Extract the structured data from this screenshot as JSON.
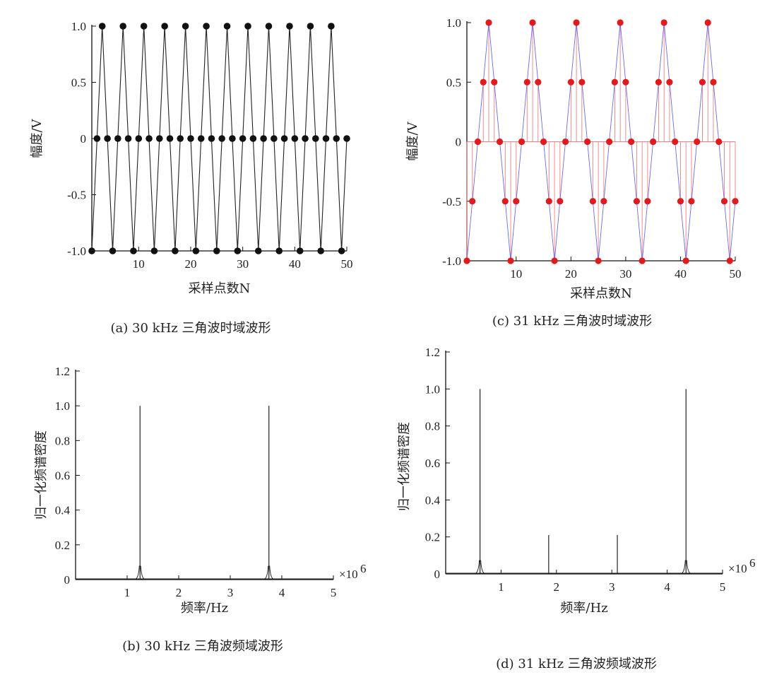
{
  "chart_data": [
    {
      "id": "a",
      "type": "line",
      "caption": "(a) 30 kHz 三角波时域波形",
      "xlabel": "采样点数N",
      "ylabel": "幅度/V",
      "xlim": [
        1,
        50
      ],
      "ylim": [
        -1.0,
        1.0
      ],
      "xticks": [
        10,
        20,
        30,
        40,
        50
      ],
      "yticks": [
        -1.0,
        -0.5,
        0,
        0.5,
        1.0
      ],
      "ytick_labels": [
        "-1.0",
        "-0.5",
        "0",
        "0.5",
        "1.0"
      ],
      "marker_color": "#111111",
      "line_color": "#222222",
      "series": [
        {
          "x": [
            1,
            2,
            3,
            4,
            5,
            6,
            7,
            8,
            9,
            10,
            11,
            12,
            13,
            14,
            15,
            16,
            17,
            18,
            19,
            20,
            21,
            22,
            23,
            24,
            25,
            26,
            27,
            28,
            29,
            30,
            31,
            32,
            33,
            34,
            35,
            36,
            37,
            38,
            39,
            40,
            41,
            42,
            43,
            44,
            45,
            46,
            47,
            48,
            49,
            50
          ],
          "y": [
            -1,
            0,
            1,
            0,
            -1,
            0,
            1,
            0,
            -1,
            0,
            1,
            0,
            -1,
            0,
            1,
            0,
            -1,
            0,
            1,
            0,
            -1,
            0,
            1,
            0,
            -1,
            0,
            1,
            0,
            -1,
            0,
            1,
            0,
            -1,
            0,
            1,
            0,
            -1,
            0,
            1,
            0,
            -1,
            0,
            1,
            0,
            -1,
            0,
            1,
            0,
            -1,
            0
          ]
        }
      ]
    },
    {
      "id": "c",
      "type": "line",
      "caption": "(c) 31 kHz 三角波时域波形",
      "xlabel": "采样点数N",
      "ylabel": "幅度/V",
      "xlim": [
        1,
        50
      ],
      "ylim": [
        -1.0,
        1.0
      ],
      "xticks": [
        10,
        20,
        30,
        40,
        50
      ],
      "yticks": [
        -1.0,
        -0.5,
        0,
        0.5,
        1.0
      ],
      "ytick_labels": [
        "-1.0",
        "-0.5",
        "0",
        "0.5",
        "1.0"
      ],
      "marker_color": "#e31a1c",
      "line_color": "#6a6af0",
      "stem_color": "#f08080",
      "series": [
        {
          "x": [
            1,
            2,
            3,
            4,
            5,
            6,
            7,
            8,
            9,
            10,
            11,
            12,
            13,
            14,
            15,
            16,
            17,
            18,
            19,
            20,
            21,
            22,
            23,
            24,
            25,
            26,
            27,
            28,
            29,
            30,
            31,
            32,
            33,
            34,
            35,
            36,
            37,
            38,
            39,
            40,
            41,
            42,
            43,
            44,
            45,
            46,
            47,
            48,
            49,
            50
          ],
          "y": [
            -1,
            -0.5,
            0,
            0.5,
            1,
            0.5,
            0,
            -0.5,
            -1,
            -0.5,
            0,
            0.5,
            1,
            0.5,
            0,
            -0.5,
            -1,
            -0.5,
            0,
            0.5,
            1,
            0.5,
            0,
            -0.5,
            -1,
            -0.5,
            0,
            0.5,
            1,
            0.5,
            0,
            -0.5,
            -1,
            -0.5,
            0,
            0.5,
            1,
            0.5,
            0,
            -0.5,
            -1,
            -0.5,
            0,
            0.5,
            1,
            0.5,
            0,
            -0.5,
            -1,
            -0.5
          ]
        }
      ]
    },
    {
      "id": "b",
      "type": "line",
      "caption": "(b) 30 kHz 三角波频域波形",
      "xlabel": "频率/Hz",
      "ylabel": "归一化频谱密度",
      "x_multiplier": "×10",
      "x_multiplier_exp": "6",
      "xlim": [
        0,
        5
      ],
      "ylim": [
        0,
        1.2
      ],
      "xticks": [
        1,
        2,
        3,
        4,
        5
      ],
      "yticks": [
        0,
        0.2,
        0.4,
        0.6,
        0.8,
        1.0,
        1.2
      ],
      "ytick_labels": [
        "0",
        "0.2",
        "0.4",
        "0.6",
        "0.8",
        "1.0",
        "1.2"
      ],
      "line_color": "#222222",
      "peaks": [
        {
          "x": 1.25,
          "y": 1.0
        },
        {
          "x": 3.75,
          "y": 1.0
        }
      ]
    },
    {
      "id": "d",
      "type": "line",
      "caption": "(d) 31 kHz 三角波频域波形",
      "xlabel": "频率/Hz",
      "ylabel": "归一化频谱密度",
      "x_multiplier": "×10",
      "x_multiplier_exp": "6",
      "xlim": [
        0,
        5
      ],
      "ylim": [
        0,
        1.2
      ],
      "xticks": [
        1,
        2,
        3,
        4,
        5
      ],
      "yticks": [
        0,
        0.2,
        0.4,
        0.6,
        0.8,
        1.0,
        1.2
      ],
      "ytick_labels": [
        "0",
        "0.2",
        "0.4",
        "0.6",
        "0.8",
        "1.0",
        "1.2"
      ],
      "line_color": "#222222",
      "peaks": [
        {
          "x": 0.62,
          "y": 1.0
        },
        {
          "x": 1.86,
          "y": 0.21
        },
        {
          "x": 3.1,
          "y": 0.21
        },
        {
          "x": 4.34,
          "y": 1.0
        }
      ]
    }
  ]
}
